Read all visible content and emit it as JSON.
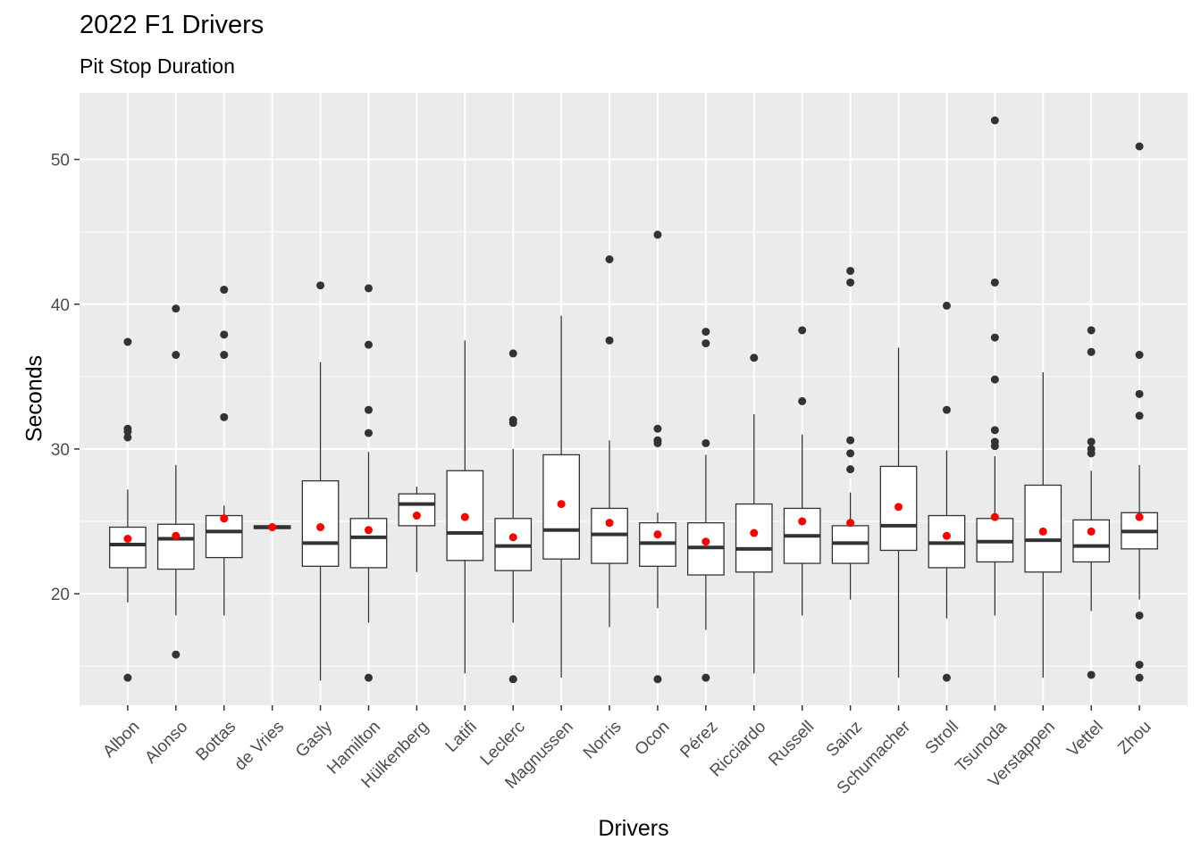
{
  "chart_data": {
    "type": "box",
    "title": "2022 F1 Drivers",
    "subtitle": "Pit Stop Duration",
    "xlabel": "Drivers",
    "ylabel": "Seconds",
    "ylim": [
      12.3,
      54.6
    ],
    "yticks": [
      20,
      30,
      40,
      50
    ],
    "grid": true,
    "colors": {
      "panel": "#EBEBEB",
      "grid": "#FFFFFF",
      "box": "#333333",
      "outlier": "#333333",
      "mean": "#FF0000"
    },
    "series": [
      {
        "name": "Albon",
        "q1": 21.8,
        "median": 23.4,
        "q3": 24.6,
        "whisker_low": 19.4,
        "whisker_high": 27.2,
        "mean": 23.8,
        "outliers": [
          14.2,
          30.8,
          31.2,
          31.4,
          37.4
        ]
      },
      {
        "name": "Alonso",
        "q1": 21.7,
        "median": 23.8,
        "q3": 24.8,
        "whisker_low": 18.5,
        "whisker_high": 28.9,
        "mean": 24.0,
        "outliers": [
          15.8,
          36.5,
          39.7
        ]
      },
      {
        "name": "Bottas",
        "q1": 22.5,
        "median": 24.3,
        "q3": 25.4,
        "whisker_low": 18.5,
        "whisker_high": 26.1,
        "mean": 25.2,
        "outliers": [
          32.2,
          36.5,
          37.9,
          41.0
        ]
      },
      {
        "name": "de Vries",
        "q1": 24.5,
        "median": 24.6,
        "q3": 24.7,
        "whisker_low": 24.5,
        "whisker_high": 24.7,
        "mean": 24.6,
        "outliers": []
      },
      {
        "name": "Gasly",
        "q1": 21.9,
        "median": 23.5,
        "q3": 27.8,
        "whisker_low": 14.0,
        "whisker_high": 36.0,
        "mean": 24.6,
        "outliers": [
          41.3
        ]
      },
      {
        "name": "Hamilton",
        "q1": 21.8,
        "median": 23.9,
        "q3": 25.2,
        "whisker_low": 18.0,
        "whisker_high": 29.8,
        "mean": 24.4,
        "outliers": [
          14.2,
          31.1,
          32.7,
          37.2,
          41.1
        ]
      },
      {
        "name": "Hülkenberg",
        "q1": 24.7,
        "median": 26.2,
        "q3": 26.9,
        "whisker_low": 21.5,
        "whisker_high": 27.4,
        "mean": 25.4,
        "outliers": []
      },
      {
        "name": "Latifi",
        "q1": 22.3,
        "median": 24.2,
        "q3": 28.5,
        "whisker_low": 14.5,
        "whisker_high": 37.5,
        "mean": 25.3,
        "outliers": []
      },
      {
        "name": "Leclerc",
        "q1": 21.6,
        "median": 23.3,
        "q3": 25.2,
        "whisker_low": 18.0,
        "whisker_high": 30.0,
        "mean": 23.9,
        "outliers": [
          14.1,
          31.8,
          32.0,
          36.6
        ]
      },
      {
        "name": "Magnussen",
        "q1": 22.4,
        "median": 24.4,
        "q3": 29.6,
        "whisker_low": 14.2,
        "whisker_high": 39.2,
        "mean": 26.2,
        "outliers": []
      },
      {
        "name": "Norris",
        "q1": 22.1,
        "median": 24.1,
        "q3": 25.9,
        "whisker_low": 17.7,
        "whisker_high": 30.6,
        "mean": 24.9,
        "outliers": [
          37.5,
          43.1
        ]
      },
      {
        "name": "Ocon",
        "q1": 21.9,
        "median": 23.5,
        "q3": 24.9,
        "whisker_low": 19.0,
        "whisker_high": 25.6,
        "mean": 24.1,
        "outliers": [
          14.1,
          30.4,
          30.6,
          31.4,
          44.8
        ]
      },
      {
        "name": "Pérez",
        "q1": 21.3,
        "median": 23.2,
        "q3": 24.9,
        "whisker_low": 17.5,
        "whisker_high": 29.6,
        "mean": 23.6,
        "outliers": [
          14.2,
          30.4,
          37.3,
          38.1
        ]
      },
      {
        "name": "Ricciardo",
        "q1": 21.5,
        "median": 23.1,
        "q3": 26.2,
        "whisker_low": 14.5,
        "whisker_high": 32.4,
        "mean": 24.2,
        "outliers": [
          36.3
        ]
      },
      {
        "name": "Russell",
        "q1": 22.1,
        "median": 24.0,
        "q3": 25.9,
        "whisker_low": 18.5,
        "whisker_high": 31.0,
        "mean": 25.0,
        "outliers": [
          33.3,
          38.2
        ]
      },
      {
        "name": "Sainz",
        "q1": 22.1,
        "median": 23.5,
        "q3": 24.7,
        "whisker_low": 19.6,
        "whisker_high": 27.0,
        "mean": 24.9,
        "outliers": [
          28.6,
          29.7,
          30.6,
          41.5,
          42.3
        ]
      },
      {
        "name": "Schumacher",
        "q1": 23.0,
        "median": 24.7,
        "q3": 28.8,
        "whisker_low": 14.2,
        "whisker_high": 37.0,
        "mean": 26.0,
        "outliers": []
      },
      {
        "name": "Stroll",
        "q1": 21.8,
        "median": 23.5,
        "q3": 25.4,
        "whisker_low": 18.3,
        "whisker_high": 29.9,
        "mean": 24.0,
        "outliers": [
          14.2,
          32.7,
          39.9
        ]
      },
      {
        "name": "Tsunoda",
        "q1": 22.2,
        "median": 23.6,
        "q3": 25.2,
        "whisker_low": 18.5,
        "whisker_high": 29.5,
        "mean": 25.3,
        "outliers": [
          30.2,
          30.5,
          31.3,
          34.8,
          37.7,
          41.5,
          52.7
        ]
      },
      {
        "name": "Verstappen",
        "q1": 21.5,
        "median": 23.7,
        "q3": 27.5,
        "whisker_low": 14.2,
        "whisker_high": 35.3,
        "mean": 24.3,
        "outliers": []
      },
      {
        "name": "Vettel",
        "q1": 22.2,
        "median": 23.3,
        "q3": 25.1,
        "whisker_low": 18.8,
        "whisker_high": 28.5,
        "mean": 24.3,
        "outliers": [
          14.4,
          29.7,
          30.0,
          30.5,
          36.7,
          38.2
        ]
      },
      {
        "name": "Zhou",
        "q1": 23.1,
        "median": 24.3,
        "q3": 25.6,
        "whisker_low": 19.6,
        "whisker_high": 28.9,
        "mean": 25.3,
        "outliers": [
          14.2,
          15.1,
          18.5,
          32.3,
          33.8,
          36.5,
          50.9
        ]
      }
    ]
  }
}
